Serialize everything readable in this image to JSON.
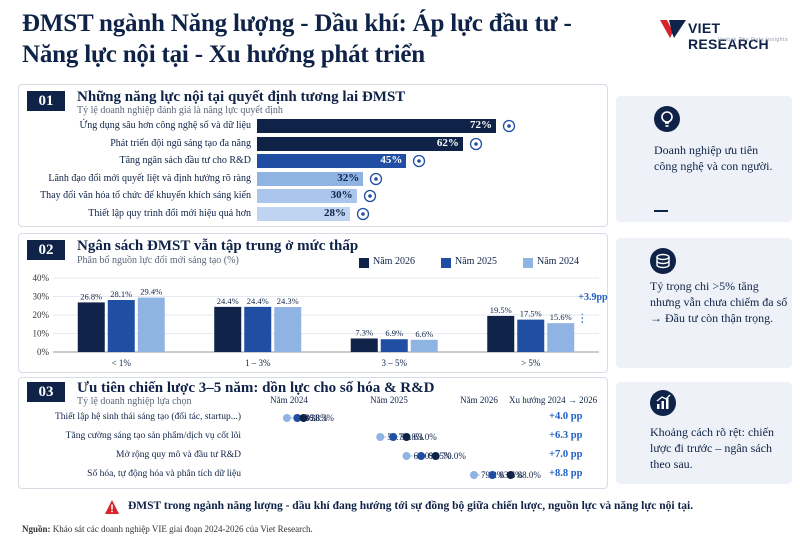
{
  "title_line1": "ĐMST ngành Năng lượng - Dầu khí: Áp lực đầu tư -",
  "title_line2": "Năng lực nội tại - Xu hướng phát triển",
  "logo": {
    "name": "VIET RESEARCH",
    "tagline": "Unlock The Data Insights"
  },
  "colors": {
    "navy": "#0f2247",
    "blue": "#1f4ea3",
    "light_blue": "#8fb3e3",
    "accent": "#1f5fc4"
  },
  "section1": {
    "number": "01",
    "title": "Những năng lực nội tại quyết định tương lai ĐMST",
    "subtitle": "Tỷ lệ doanh nghiệp đánh giá là năng lực quyết định",
    "side_text": "Doanh nghiệp ưu tiên công nghệ và con người.",
    "side_icon": "lightbulb-icon"
  },
  "section2": {
    "number": "02",
    "title": "Ngân sách ĐMST vẫn tập trung ở mức thấp",
    "subtitle": "Phân bổ nguồn lực đổi mới sáng tạo (%)",
    "annotation": "+3.9pp",
    "side_text": "Tỷ trọng chi >5% tăng nhưng vẫn chưa chiếm đa số → Đầu tư còn thận trọng.",
    "side_icon": "coins-icon"
  },
  "section3": {
    "number": "03",
    "title": "Ưu tiên chiến lược 3–5 năm: dồn lực cho số hóa & R&D",
    "subtitle": "Tỷ lệ doanh nghiệp lựa chọn",
    "trend_header": "Xu hướng 2024 → 2026",
    "side_text": "Khoảng cách rõ rệt: chiến lược đi trước – ngân sách theo sau.",
    "side_icon": "growth-chart-icon"
  },
  "conclusion": "ĐMST trong ngành năng lượng - dầu khí đang hướng tới sự đồng bộ giữa chiến lược, nguồn lực và năng lực nội tại.",
  "source_label": "Nguồn:",
  "source_text": "Khảo sát các doanh nghiệp VIE giai đoạn 2024-2026 của Viet Research.",
  "chart_data": [
    {
      "type": "bar",
      "orientation": "horizontal",
      "categories": [
        "Ứng dụng sâu hơn công nghệ số và dữ liệu",
        "Phát triển đội ngũ sáng tạo đa năng",
        "Tăng ngân sách đầu tư cho R&D",
        "Lãnh đạo đổi mới quyết liệt và định hướng rõ ràng",
        "Thay đổi văn hóa tổ chức để khuyến khích sáng kiến",
        "Thiết lập quy trình đổi mới hiệu quả hơn"
      ],
      "values": [
        72,
        62,
        45,
        32,
        30,
        28
      ],
      "value_labels": [
        "72%",
        "62%",
        "45%",
        "32%",
        "30%",
        "28%"
      ],
      "icons": [
        "cloud-data-icon",
        "team-icon",
        "growth-chart-icon",
        "target-icon",
        "idea-icon",
        "gear-icon"
      ],
      "xlim": [
        0,
        100
      ]
    },
    {
      "type": "bar",
      "categories": [
        "< 1%",
        "1 – 3%",
        "3 – 5%",
        "> 5%"
      ],
      "series": [
        {
          "name": "Năm 2026",
          "color": "#0f2247",
          "values": [
            26.8,
            24.4,
            7.3,
            19.5
          ]
        },
        {
          "name": "Năm 2025",
          "color": "#1f4ea3",
          "values": [
            28.1,
            24.4,
            6.9,
            17.5
          ]
        },
        {
          "name": "Năm 2024",
          "color": "#8fb3e3",
          "values": [
            29.4,
            24.3,
            6.6,
            15.6
          ]
        }
      ],
      "value_labels": [
        [
          "26.8%",
          "24.4%",
          "7.3%",
          "19.5%"
        ],
        [
          "28.1%",
          "24.4%",
          "6.9%",
          "17.5%"
        ],
        [
          "29.4%",
          "24.3%",
          "6.6%",
          "15.6%"
        ]
      ],
      "yticks": [
        "40%",
        "30%",
        "20%",
        "10%",
        "0%"
      ],
      "ylim": [
        0,
        40
      ],
      "legend": "top-right"
    },
    {
      "type": "scatter",
      "subtype": "dot-plot",
      "columns": [
        "Năm 2024",
        "Năm 2025",
        "Năm 2026"
      ],
      "categories": [
        "Thiết lập hệ sinh thái sáng tạo (đối tác, startup...)",
        "Tăng cường sáng tạo sản phẩm/dịch vụ cốt lõi",
        "Mở rộng quy mô và đầu tư R&D",
        "Số hóa, tự động hóa và phân tích dữ liệu"
      ],
      "series": [
        {
          "name": "Năm 2024",
          "color": "#8fb3e3",
          "values": [
            34.3,
            56.7,
            63.0,
            79.2
          ],
          "labels": [
            "34.3%",
            "56.7%",
            "63.0%",
            "79.2%"
          ]
        },
        {
          "name": "Năm 2025",
          "color": "#1f4ea3",
          "values": [
            36.8,
            59.8,
            66.5,
            83.6
          ],
          "labels": [
            "36.8%",
            "59.8%",
            "66.5%",
            "83.6%"
          ]
        },
        {
          "name": "Năm 2026",
          "color": "#0f2247",
          "values": [
            38.3,
            63.0,
            70.0,
            88.0
          ],
          "labels": [
            "38.3%",
            "63.0%",
            "70.0%",
            "88.0%"
          ]
        }
      ],
      "trend": [
        "+4.0 pp",
        "+6.3 pp",
        "+7.0 pp",
        "+8.8 pp"
      ]
    }
  ]
}
